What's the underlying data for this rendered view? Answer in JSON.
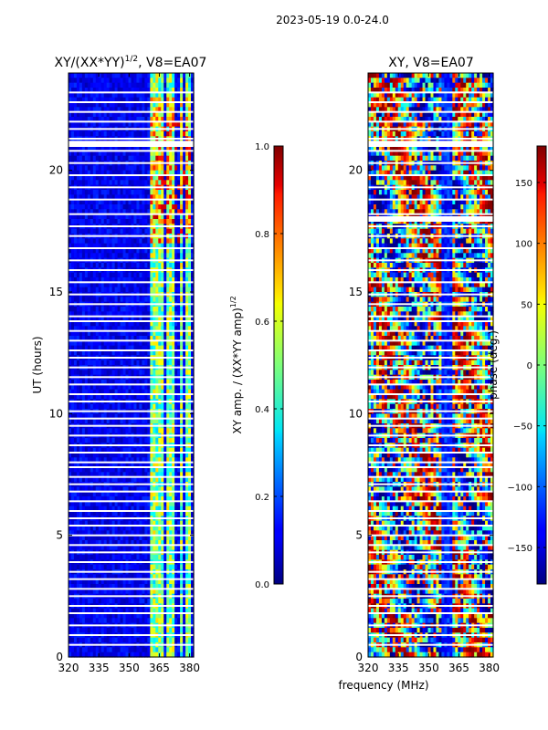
{
  "suptitle": "2023-05-19 0.0-24.0",
  "shared_xlabel": "frequency (MHz)",
  "chart_data": [
    {
      "type": "heatmap",
      "title_main": "XY/(XX*YY)",
      "title_sup": "1/2",
      "title_tail": ", V8=EA07",
      "ylabel": "UT (hours)",
      "xlim": [
        320,
        382
      ],
      "ylim": [
        0,
        24
      ],
      "xticks": [
        320,
        335,
        350,
        365,
        380
      ],
      "yticks": [
        0,
        5,
        10,
        15,
        20
      ],
      "colorbar": {
        "label_main": "XY amp. / (XX*YY amp)",
        "label_sup": "1/2",
        "range": [
          0.0,
          1.0
        ],
        "ticks": [
          0.0,
          0.2,
          0.4,
          0.6,
          0.8,
          1.0
        ],
        "tick_labels": [
          "0.0",
          "0.2",
          "0.4",
          "0.6",
          "0.8",
          "1.0"
        ]
      },
      "band_columns_mhz": [
        [
          360,
          364
        ],
        [
          365,
          367
        ],
        [
          369,
          372
        ],
        [
          375,
          377
        ],
        [
          378,
          380
        ]
      ],
      "gap_rows_hours": [
        0.5,
        0.9,
        1.3,
        1.8,
        2.1,
        2.5,
        2.8,
        3.2,
        3.5,
        3.9,
        4.3,
        4.6,
        5.0,
        5.4,
        5.7,
        6.0,
        6.4,
        6.8,
        7.1,
        7.4,
        7.8,
        8.0,
        8.4,
        8.7,
        9.1,
        9.5,
        9.8,
        10.1,
        10.5,
        10.8,
        11.2,
        11.5,
        11.9,
        12.3,
        12.6,
        13.0,
        13.4,
        13.8,
        14.0,
        14.5,
        14.9,
        15.4,
        15.9,
        16.3,
        16.8,
        17.3,
        17.7,
        18.2,
        18.8,
        19.3,
        19.8,
        20.3,
        20.8,
        21.0,
        21.3,
        21.7,
        22.0,
        22.4,
        22.8,
        23.2
      ]
    },
    {
      "type": "heatmap",
      "title_main": "XY, V8=EA07",
      "ylabel": "",
      "xlim": [
        320,
        382
      ],
      "ylim": [
        0,
        24
      ],
      "xticks": [
        320,
        335,
        350,
        365,
        380
      ],
      "yticks": [
        0,
        5,
        10,
        15,
        20
      ],
      "colorbar": {
        "label_main": "phase (deg.)",
        "range": [
          -180,
          180
        ],
        "ticks": [
          -150,
          -100,
          -50,
          0,
          50,
          100,
          150
        ],
        "tick_labels": [
          "−150",
          "−100",
          "−50",
          "0",
          "50",
          "100",
          "150"
        ]
      },
      "gap_rows_hours": [
        0.5,
        0.9,
        1.3,
        1.8,
        2.1,
        2.5,
        2.8,
        3.2,
        3.5,
        3.9,
        4.3,
        4.6,
        5.0,
        5.4,
        5.7,
        6.0,
        6.4,
        6.8,
        7.1,
        7.4,
        7.8,
        8.0,
        8.4,
        8.7,
        9.1,
        9.5,
        9.8,
        10.1,
        10.5,
        10.8,
        11.2,
        11.5,
        11.9,
        12.3,
        12.6,
        13.0,
        13.4,
        13.8,
        14.0,
        14.5,
        14.9,
        15.4,
        15.9,
        16.3,
        16.8,
        17.3,
        17.7,
        18.2,
        18.8,
        19.3,
        19.8,
        20.3,
        20.8,
        21.0,
        21.3,
        21.7,
        22.0,
        22.4,
        22.8,
        23.2
      ]
    }
  ]
}
